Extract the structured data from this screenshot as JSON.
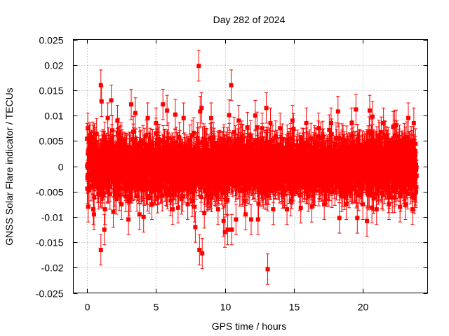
{
  "chart_data": {
    "type": "scatter",
    "title": "Day 282 of 2024",
    "xlabel": "GPS time / hours",
    "ylabel": "GNSS Solar Flare indicator / TECUs",
    "xlim": [
      -1,
      24.7
    ],
    "ylim": [
      -0.025,
      0.025
    ],
    "xticks": [
      0,
      5,
      10,
      15,
      20
    ],
    "xtick_labels": [
      "0",
      "5",
      "10",
      "15",
      "20"
    ],
    "yticks": [
      -0.025,
      -0.02,
      -0.015,
      -0.01,
      -0.005,
      0,
      0.005,
      0.01,
      0.015,
      0.02,
      0.025
    ],
    "ytick_labels": [
      "-0.025",
      "-0.02",
      "-0.015",
      "-0.01",
      "-0.005",
      "0",
      "0.005",
      "0.01",
      "0.015",
      "0.02",
      "0.025"
    ],
    "grid": true,
    "marker_color": "#ff0000",
    "error_bar_halfwidth": 0.003,
    "dense_band": {
      "x_range": [
        0,
        23.9
      ],
      "typical_y_range": [
        -0.006,
        0.006
      ],
      "description_count": 2880
    },
    "points": [
      {
        "x": 0.05,
        "y": 0.0075
      },
      {
        "x": 0.08,
        "y": -0.008
      },
      {
        "x": 0.5,
        "y": -0.0095
      },
      {
        "x": 0.45,
        "y": -0.0085
      },
      {
        "x": 1.0,
        "y": 0.016
      },
      {
        "x": 1.05,
        "y": 0.0128
      },
      {
        "x": 1.0,
        "y": -0.0165
      },
      {
        "x": 1.25,
        "y": -0.0125
      },
      {
        "x": 1.3,
        "y": -0.0085
      },
      {
        "x": 1.75,
        "y": 0.013
      },
      {
        "x": 1.5,
        "y": 0.0095
      },
      {
        "x": 1.9,
        "y": -0.009
      },
      {
        "x": 2.2,
        "y": 0.009
      },
      {
        "x": 2.5,
        "y": -0.0075
      },
      {
        "x": 3.0,
        "y": -0.0105
      },
      {
        "x": 3.2,
        "y": 0.0122
      },
      {
        "x": 3.5,
        "y": 0.0105
      },
      {
        "x": 3.8,
        "y": -0.0095
      },
      {
        "x": 4.1,
        "y": -0.01
      },
      {
        "x": 4.4,
        "y": 0.0095
      },
      {
        "x": 4.7,
        "y": -0.0075
      },
      {
        "x": 5.0,
        "y": 0.0085
      },
      {
        "x": 5.5,
        "y": 0.0122
      },
      {
        "x": 5.8,
        "y": 0.011
      },
      {
        "x": 6.2,
        "y": -0.0085
      },
      {
        "x": 6.4,
        "y": 0.0102
      },
      {
        "x": 6.6,
        "y": -0.0082
      },
      {
        "x": 7.0,
        "y": 0.0095
      },
      {
        "x": 7.3,
        "y": -0.0075
      },
      {
        "x": 7.8,
        "y": -0.008
      },
      {
        "x": 8.1,
        "y": 0.0198
      },
      {
        "x": 8.2,
        "y": 0.0108
      },
      {
        "x": 8.3,
        "y": 0.0115
      },
      {
        "x": 7.85,
        "y": -0.012
      },
      {
        "x": 8.15,
        "y": -0.0165
      },
      {
        "x": 8.35,
        "y": -0.0172
      },
      {
        "x": 8.5,
        "y": -0.0092
      },
      {
        "x": 9.0,
        "y": 0.0095
      },
      {
        "x": 9.5,
        "y": -0.0085
      },
      {
        "x": 9.9,
        "y": -0.0108
      },
      {
        "x": 10.0,
        "y": -0.013
      },
      {
        "x": 10.2,
        "y": -0.0125
      },
      {
        "x": 10.3,
        "y": 0.0101
      },
      {
        "x": 10.45,
        "y": 0.016
      },
      {
        "x": 10.5,
        "y": -0.0125
      },
      {
        "x": 10.8,
        "y": -0.0105
      },
      {
        "x": 11.0,
        "y": 0.009
      },
      {
        "x": 11.5,
        "y": -0.0095
      },
      {
        "x": 11.9,
        "y": -0.0105
      },
      {
        "x": 12.2,
        "y": 0.01
      },
      {
        "x": 12.4,
        "y": -0.0105
      },
      {
        "x": 12.7,
        "y": 0.0075
      },
      {
        "x": 13.0,
        "y": 0.0115
      },
      {
        "x": 13.1,
        "y": -0.0203
      },
      {
        "x": 13.3,
        "y": 0.0085
      },
      {
        "x": 13.5,
        "y": -0.0085
      },
      {
        "x": 14.0,
        "y": 0.0075
      },
      {
        "x": 14.5,
        "y": -0.0085
      },
      {
        "x": 14.9,
        "y": 0.009
      },
      {
        "x": 15.5,
        "y": -0.0082
      },
      {
        "x": 15.9,
        "y": 0.0085
      },
      {
        "x": 16.3,
        "y": -0.008
      },
      {
        "x": 16.8,
        "y": 0.0075
      },
      {
        "x": 17.2,
        "y": -0.0075
      },
      {
        "x": 17.7,
        "y": 0.0085
      },
      {
        "x": 18.2,
        "y": 0.0108
      },
      {
        "x": 18.3,
        "y": -0.0102
      },
      {
        "x": 18.8,
        "y": -0.0075
      },
      {
        "x": 19.2,
        "y": 0.0085
      },
      {
        "x": 19.5,
        "y": 0.0112
      },
      {
        "x": 19.6,
        "y": -0.0102
      },
      {
        "x": 20.0,
        "y": -0.0075
      },
      {
        "x": 20.3,
        "y": -0.0108
      },
      {
        "x": 20.5,
        "y": 0.011
      },
      {
        "x": 20.7,
        "y": 0.0098
      },
      {
        "x": 21.0,
        "y": -0.0085
      },
      {
        "x": 21.5,
        "y": 0.0085
      },
      {
        "x": 21.9,
        "y": -0.0075
      },
      {
        "x": 22.3,
        "y": 0.008
      },
      {
        "x": 22.7,
        "y": -0.008
      },
      {
        "x": 23.1,
        "y": -0.0075
      },
      {
        "x": 23.3,
        "y": 0.0095
      },
      {
        "x": 23.6,
        "y": -0.0085
      },
      {
        "x": 23.7,
        "y": 0.0085
      }
    ]
  }
}
